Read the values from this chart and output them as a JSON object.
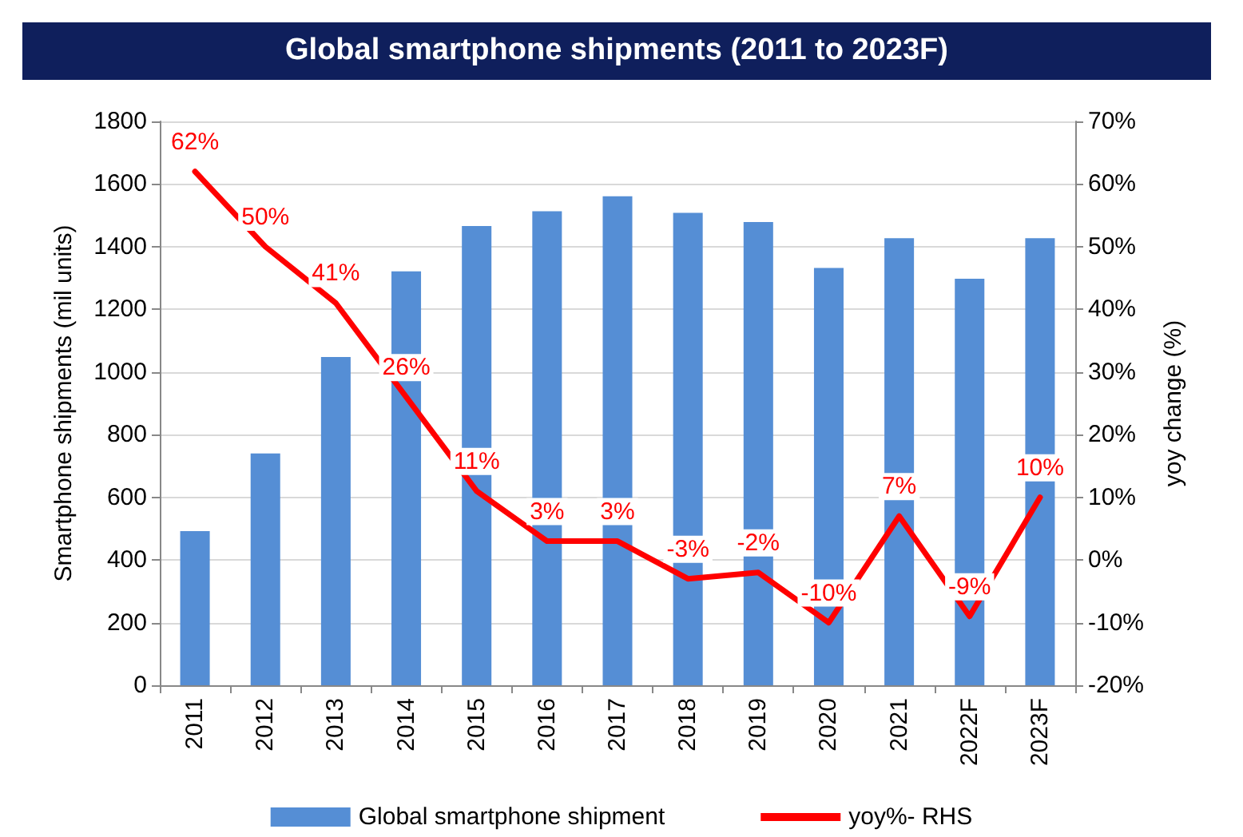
{
  "chart_data": {
    "type": "bar",
    "title": "Global smartphone shipments (2011 to 2023F)",
    "ylabel": "Smartphone shipments (mil units)",
    "y2label": "yoy change (%)",
    "categories": [
      "2011",
      "2012",
      "2013",
      "2014",
      "2015",
      "2016",
      "2017",
      "2018",
      "2019",
      "2020",
      "2021",
      "2022F",
      "2023F"
    ],
    "series": [
      {
        "name": "Global smartphone shipment",
        "color": "#558ed5",
        "values": [
          492,
          740,
          1048,
          1321,
          1466,
          1513,
          1561,
          1508,
          1479,
          1332,
          1427,
          1298,
          1427
        ]
      },
      {
        "name": "yoy%- RHS",
        "type": "line",
        "axis": "y2",
        "color": "#ff0000",
        "values": [
          62,
          50,
          41,
          26,
          11,
          3,
          3,
          -3,
          -2,
          -10,
          7,
          -9,
          10
        ],
        "value_labels": [
          "62%",
          "50%",
          "41%",
          "26%",
          "11%",
          "3%",
          "3%",
          "-3%",
          "-2%",
          "-10%",
          "7%",
          "-9%",
          "10%"
        ]
      }
    ],
    "ylim": [
      0,
      1800
    ],
    "yticks": [
      0,
      200,
      400,
      600,
      800,
      1000,
      1200,
      1400,
      1600,
      1800
    ],
    "y2lim": [
      -20,
      70
    ],
    "y2ticks": [
      {
        "value": -20,
        "label": "-20%"
      },
      {
        "value": -10,
        "label": "-10%"
      },
      {
        "value": 0,
        "label": "0%"
      },
      {
        "value": 10,
        "label": "10%"
      },
      {
        "value": 20,
        "label": "20%"
      },
      {
        "value": 30,
        "label": "30%"
      },
      {
        "value": 40,
        "label": "40%"
      },
      {
        "value": 50,
        "label": "50%"
      },
      {
        "value": 60,
        "label": "60%"
      },
      {
        "value": 70,
        "label": "70%"
      }
    ],
    "grid": "y",
    "legend": "bottom",
    "marker": "none",
    "line_style": "solid"
  }
}
